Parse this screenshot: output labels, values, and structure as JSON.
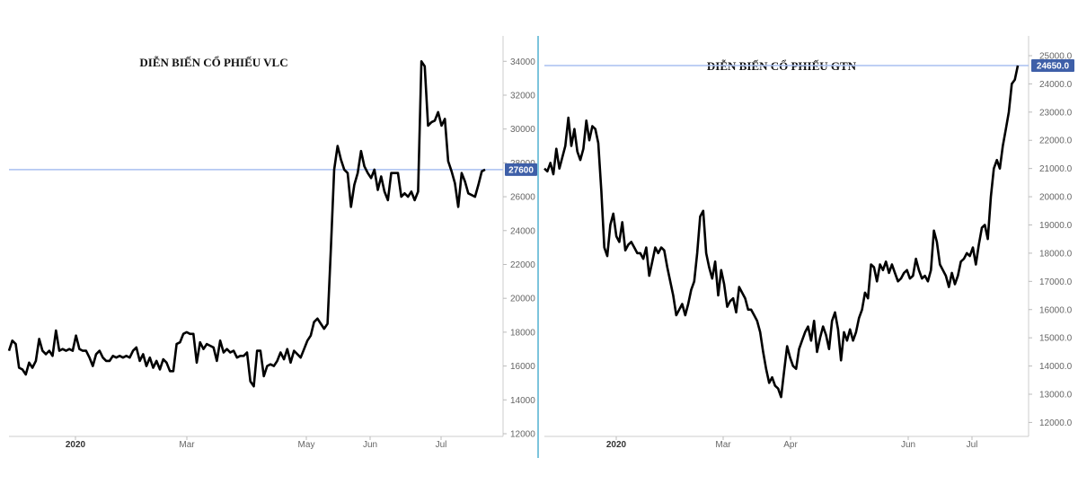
{
  "chart_data": [
    {
      "type": "line",
      "title": "DIỄN BIẾN CỔ PHIẾU VLC",
      "xlabel": "",
      "ylabel": "",
      "ylim": [
        12000,
        35500
      ],
      "y_ticks": [
        12000,
        14000,
        16000,
        18000,
        20000,
        22000,
        24000,
        26000,
        28000,
        30000,
        32000,
        34000
      ],
      "x_ticks": [
        "2020",
        "Mar",
        "May",
        "Jun",
        "Jul"
      ],
      "current_price_label": "27600",
      "current_price": 27600,
      "grid": false,
      "accent_color": "#3e5fa8",
      "series": [
        {
          "values": [
            16900,
            17500,
            17300,
            15900,
            15800,
            15500,
            16200,
            15900,
            16300,
            17600,
            16900,
            16700,
            16900,
            16600,
            18100,
            16900,
            17000,
            16900,
            17000,
            16900,
            17800,
            17000,
            16900,
            16900,
            16500,
            16000,
            16700,
            16900,
            16500,
            16300,
            16300,
            16600,
            16500,
            16600,
            16500,
            16600,
            16500,
            16900,
            17100,
            16300,
            16700,
            16000,
            16500,
            15900,
            16300,
            15800,
            16400,
            16200,
            15700,
            15700,
            17300,
            17400,
            17900,
            18000,
            17900,
            17900,
            16200,
            17400,
            17000,
            17300,
            17200,
            17100,
            16300,
            17500,
            16800,
            17000,
            16800,
            16900,
            16500,
            16600,
            16600,
            16800,
            15100,
            14800,
            16900,
            16900,
            15400,
            16000,
            16100,
            16000,
            16300,
            16800,
            16400,
            17000,
            16200,
            16900,
            16700,
            16500,
            17000,
            17500,
            17800,
            18600,
            18800,
            18500,
            18200,
            18500,
            22900,
            27600,
            29000,
            28200,
            27600,
            27400,
            25400,
            26700,
            27400,
            28700,
            27800,
            27400,
            27100,
            27600,
            26400,
            27200,
            26300,
            25800,
            27400,
            27400,
            27400,
            26000,
            26200,
            26000,
            26300,
            25800,
            26300,
            34000,
            33700,
            30200,
            30400,
            30500,
            31000,
            30200,
            30600,
            28100,
            27500,
            26800,
            25400,
            27400,
            26900,
            26200,
            26100,
            26000,
            26700,
            27500,
            27600
          ]
        }
      ]
    },
    {
      "type": "line",
      "title": "DIỄN BIẾN CỔ PHIẾU GTN",
      "xlabel": "",
      "ylabel": "",
      "ylim": [
        11600,
        25700
      ],
      "y_ticks": [
        12000.0,
        13000.0,
        14000.0,
        15000.0,
        16000.0,
        17000.0,
        18000.0,
        19000.0,
        20000.0,
        21000.0,
        22000.0,
        23000.0,
        24000.0,
        25000.0
      ],
      "y_tick_labels": [
        "12000.0",
        "13000.0",
        "14000.0",
        "15000.0",
        "16000.0",
        "17000.0",
        "18000.0",
        "19000.0",
        "20000.0",
        "21000.0",
        "22000.0",
        "23000.0",
        "24000.0",
        "25000.0"
      ],
      "x_ticks": [
        "2020",
        "Mar",
        "Apr",
        "Jun",
        "Jul"
      ],
      "current_price_label": "24650.0",
      "current_price": 24650,
      "grid": false,
      "accent_color": "#3e5fa8",
      "series": [
        {
          "values": [
            21000,
            20900,
            21200,
            20800,
            21700,
            21000,
            21400,
            21800,
            22800,
            21800,
            22400,
            21600,
            21300,
            21700,
            22700,
            22000,
            22500,
            22400,
            21900,
            20200,
            18200,
            17900,
            19000,
            19400,
            18600,
            18400,
            19100,
            18100,
            18300,
            18400,
            18200,
            18000,
            18000,
            17800,
            18200,
            17200,
            17700,
            18200,
            18000,
            18200,
            18100,
            17500,
            17000,
            16500,
            15800,
            16000,
            16200,
            15800,
            16200,
            16700,
            17000,
            18000,
            19300,
            19500,
            18000,
            17500,
            17100,
            17700,
            16500,
            17400,
            16900,
            16100,
            16300,
            16400,
            15900,
            16800,
            16600,
            16400,
            16000,
            16000,
            15800,
            15600,
            15200,
            14500,
            13900,
            13400,
            13600,
            13300,
            13200,
            12900,
            13800,
            14700,
            14300,
            14000,
            13900,
            14600,
            14900,
            15200,
            15400,
            14900,
            15600,
            14500,
            15000,
            15400,
            15100,
            14600,
            15600,
            15900,
            15300,
            14200,
            15200,
            14900,
            15300,
            14900,
            15200,
            15700,
            16000,
            16600,
            16400,
            17600,
            17500,
            17000,
            17600,
            17400,
            17700,
            17300,
            17600,
            17300,
            17000,
            17100,
            17300,
            17400,
            17100,
            17200,
            17800,
            17400,
            17100,
            17200,
            17000,
            17400,
            18800,
            18400,
            17600,
            17400,
            17200,
            16800,
            17300,
            16900,
            17200,
            17700,
            17800,
            18000,
            17900,
            18200,
            17600,
            18300,
            18900,
            19000,
            18500,
            20000,
            21000,
            21300,
            21000,
            21800,
            22400,
            23000,
            24000,
            24150,
            24650
          ]
        }
      ]
    }
  ]
}
